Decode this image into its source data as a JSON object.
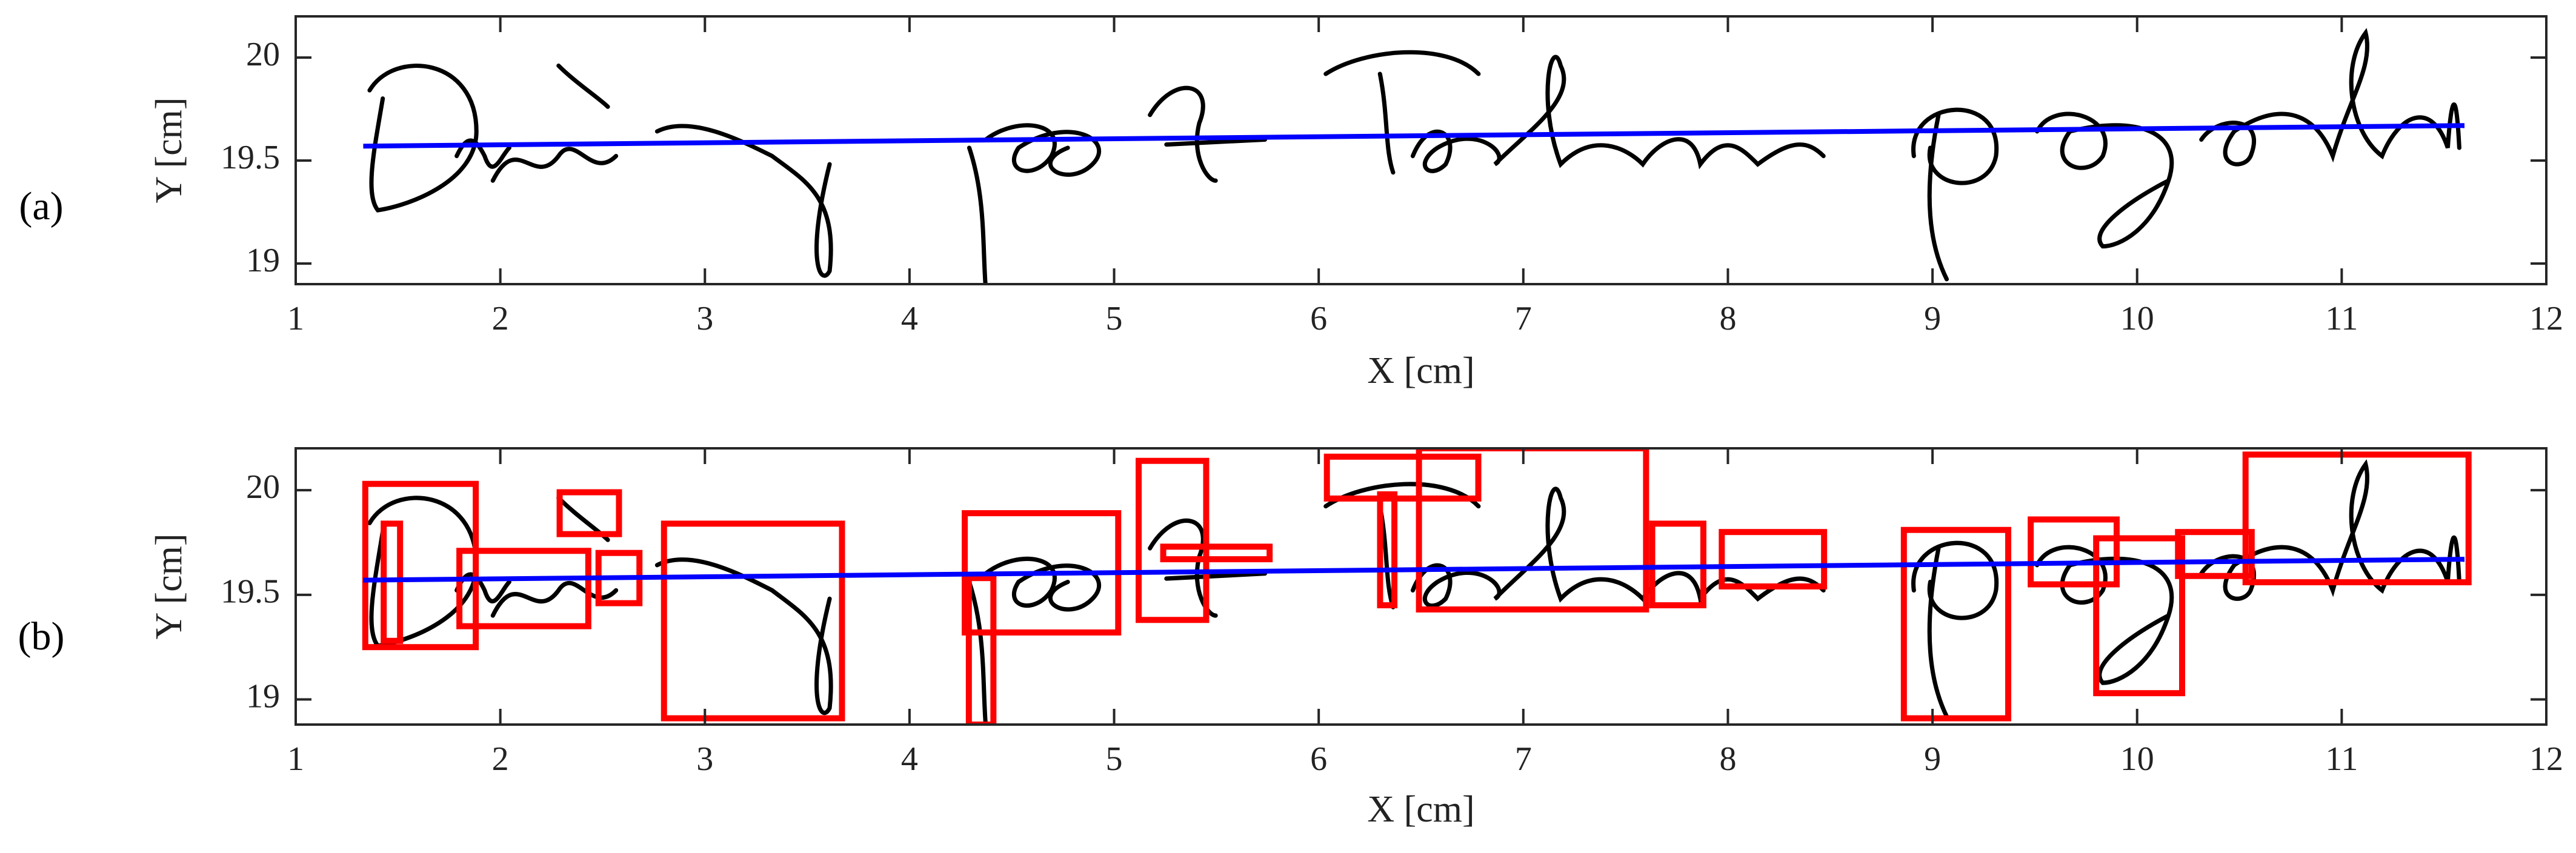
{
  "chart_data": [
    {
      "type": "line",
      "panel_label": "(a)",
      "xlabel": "X [cm]",
      "ylabel": "Y [cm]",
      "xlim": [
        1,
        12
      ],
      "ylim": [
        18.9,
        20.2
      ],
      "xticks": [
        1,
        2,
        3,
        4,
        5,
        6,
        7,
        8,
        9,
        10,
        11,
        12
      ],
      "yticks": [
        19,
        19.5,
        20
      ],
      "x": [
        1.33,
        11.6
      ],
      "series": [
        {
          "color": "#0000ff",
          "values": [
            19.57,
            19.67
          ]
        }
      ]
    },
    {
      "type": "line",
      "panel_label": "(b)",
      "xlabel": "X [cm]",
      "ylabel": "Y [cm]",
      "xlim": [
        1,
        12
      ],
      "ylim": [
        18.88,
        20.2
      ],
      "xticks": [
        1,
        2,
        3,
        4,
        5,
        6,
        7,
        8,
        9,
        10,
        11,
        12
      ],
      "yticks": [
        19,
        19.5,
        20
      ],
      "x": [
        1.33,
        11.6
      ],
      "series": [
        {
          "color": "#0000ff",
          "values": [
            19.57,
            19.67
          ]
        }
      ],
      "box_color": "#ff0000",
      "boxes": [
        {
          "x": [
            1.34,
            1.88
          ],
          "y": [
            19.25,
            20.03
          ]
        },
        {
          "x": [
            1.43,
            1.51
          ],
          "y": [
            19.28,
            19.84
          ]
        },
        {
          "x": [
            1.8,
            2.43
          ],
          "y": [
            19.35,
            19.71
          ]
        },
        {
          "x": [
            2.29,
            2.58
          ],
          "y": [
            19.79,
            19.99
          ]
        },
        {
          "x": [
            2.48,
            2.68
          ],
          "y": [
            19.46,
            19.7
          ]
        },
        {
          "x": [
            2.8,
            3.67
          ],
          "y": [
            18.91,
            19.84
          ]
        },
        {
          "x": [
            4.27,
            5.02
          ],
          "y": [
            19.32,
            19.89
          ]
        },
        {
          "x": [
            4.29,
            4.41
          ],
          "y": [
            18.88,
            19.58
          ]
        },
        {
          "x": [
            5.12,
            5.45
          ],
          "y": [
            19.38,
            20.14
          ]
        },
        {
          "x": [
            5.24,
            5.76
          ],
          "y": [
            19.67,
            19.73
          ]
        },
        {
          "x": [
            6.04,
            6.78
          ],
          "y": [
            19.96,
            20.16
          ]
        },
        {
          "x": [
            6.3,
            6.37
          ],
          "y": [
            19.45,
            19.98
          ]
        },
        {
          "x": [
            6.49,
            7.6
          ],
          "y": [
            19.43,
            20.2
          ]
        },
        {
          "x": [
            7.63,
            7.88
          ],
          "y": [
            19.45,
            19.84
          ]
        },
        {
          "x": [
            7.97,
            8.47
          ],
          "y": [
            19.54,
            19.8
          ]
        },
        {
          "x": [
            8.86,
            9.37
          ],
          "y": [
            18.91,
            19.81
          ]
        },
        {
          "x": [
            9.48,
            9.9
          ],
          "y": [
            19.55,
            19.86
          ]
        },
        {
          "x": [
            9.8,
            10.22
          ],
          "y": [
            19.03,
            19.77
          ]
        },
        {
          "x": [
            10.2,
            10.56
          ],
          "y": [
            19.59,
            19.8
          ]
        },
        {
          "x": [
            10.53,
            11.62
          ],
          "y": [
            19.56,
            20.17
          ]
        }
      ]
    }
  ]
}
